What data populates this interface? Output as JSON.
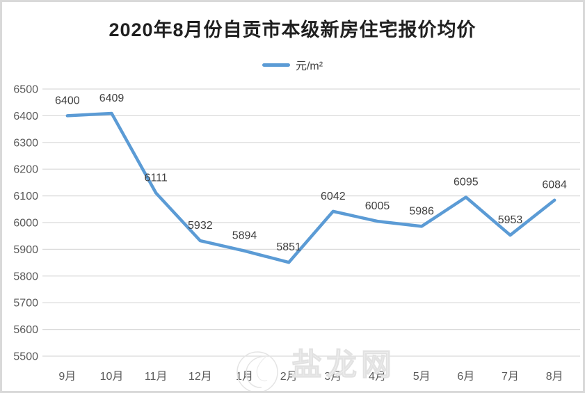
{
  "chart_data": {
    "type": "line",
    "title": "2020年8月份自贡市本级新房住宅报价均价",
    "legend": "元/m²",
    "categories": [
      "9月",
      "10月",
      "11月",
      "12月",
      "1月",
      "2月",
      "3月",
      "4月",
      "5月",
      "6月",
      "7月",
      "8月"
    ],
    "series": [
      {
        "name": "元/m²",
        "values": [
          6400,
          6409,
          6111,
          5932,
          5894,
          5851,
          6042,
          6005,
          5986,
          6095,
          5953,
          6084
        ]
      }
    ],
    "xlabel": "",
    "ylabel": "",
    "ylim": [
      5500,
      6500
    ],
    "ytick_step": 100,
    "yticks": [
      5500,
      5600,
      5700,
      5800,
      5900,
      6000,
      6100,
      6200,
      6300,
      6400,
      6500
    ],
    "grid": true,
    "legend_position": "top",
    "colors": {
      "line": "#5B9BD5",
      "gridline": "#D9D9D9",
      "axis_label": "#595959",
      "data_label": "#404040",
      "title": "#1f1f1f",
      "watermark": "#e2e2e2"
    }
  },
  "watermark": {
    "text": "盐龙网"
  }
}
